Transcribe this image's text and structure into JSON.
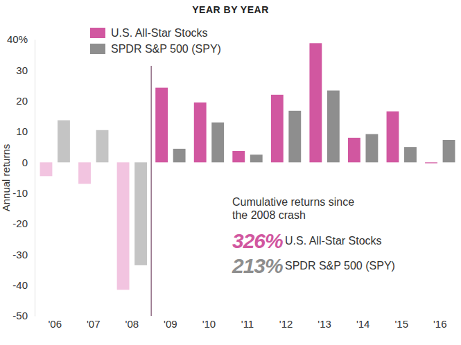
{
  "chart_data": {
    "type": "bar",
    "title": "YEAR BY YEAR",
    "y_label": "Annual returns",
    "categories": [
      "'06",
      "'07",
      "'08",
      "'09",
      "'10",
      "'11",
      "'12",
      "'13",
      "'14",
      "'15",
      "'16"
    ],
    "series": [
      {
        "name": "U.S. All-Star Stocks",
        "color": "#d157a0",
        "colors": [
          "#f2c4e0",
          "#f2c4e0",
          "#f2c4e0",
          "#d157a0",
          "#d157a0",
          "#d157a0",
          "#d157a0",
          "#d157a0",
          "#d157a0",
          "#d157a0",
          "#d157a0"
        ],
        "values": [
          -4.5,
          -7,
          -41.5,
          24.3,
          19.5,
          3.7,
          22,
          38.8,
          8,
          16.6,
          -0.3
        ]
      },
      {
        "name": "SPDR S&P 500 (SPY)",
        "color": "#8e8e8e",
        "colors": [
          "#c4c4c4",
          "#c4c4c4",
          "#c4c4c4",
          "#8e8e8e",
          "#8e8e8e",
          "#8e8e8e",
          "#8e8e8e",
          "#8e8e8e",
          "#8e8e8e",
          "#8e8e8e",
          "#8e8e8e"
        ],
        "values": [
          13.7,
          10.5,
          -33.5,
          4.4,
          13,
          2.5,
          16.8,
          23.4,
          9.2,
          5,
          7.3
        ]
      }
    ],
    "ylim": [
      -50,
      40
    ],
    "yticks": [
      -50,
      -40,
      -30,
      -20,
      -10,
      0,
      10,
      20,
      30,
      {
        "value": 40,
        "label": "40%"
      }
    ],
    "grid": false,
    "legend": "top-left",
    "annotation": {
      "text": [
        "Cumulative returns since",
        "the 2008 crash"
      ],
      "items": [
        {
          "text": "326%",
          "label": "U.S. All-Star Stocks",
          "color": "#d157a0"
        },
        {
          "text": "213%",
          "label": "SPDR S&P 500 (SPY)",
          "color": "#8e8e8e"
        }
      ]
    }
  }
}
